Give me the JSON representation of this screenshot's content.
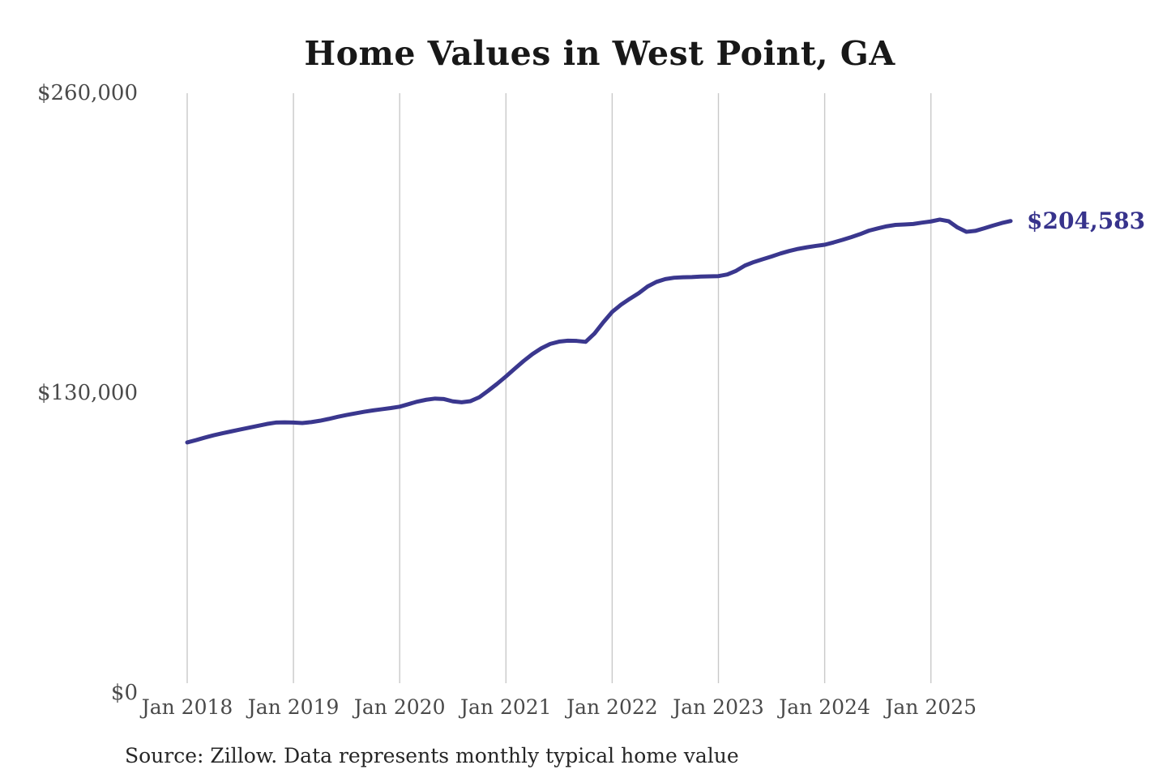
{
  "chart_data": {
    "type": "line",
    "title": "Home Values in West Point, GA",
    "source_note": "Source: Zillow. Data represents monthly typical home value",
    "xlabel": "",
    "ylabel": "",
    "x_tick_labels": [
      "Jan 2018",
      "Jan 2019",
      "Jan 2020",
      "Jan 2021",
      "Jan 2022",
      "Jan 2023",
      "Jan 2024",
      "Jan 2025"
    ],
    "y_tick_labels": [
      "$0",
      "$130,000",
      "$260,000"
    ],
    "y_axis": {
      "min": 0,
      "max": 260000,
      "ticks": [
        0,
        130000,
        260000
      ]
    },
    "grid": "vertical-only",
    "legend": "none",
    "colors": {
      "line": "#3a378e",
      "end_label": "#37338c",
      "gridline": "#c9c9c9",
      "axis_text": "#4a4a4a",
      "title_text": "#181818",
      "background": "#ffffff"
    },
    "series": [
      {
        "name": "Monthly typical home value",
        "start_month": "2018-01",
        "end_month": "2025-10",
        "frequency": "monthly",
        "end_label": "$204,583",
        "last_value": 204583,
        "values": [
          108600,
          109600,
          110700,
          111700,
          112600,
          113400,
          114200,
          115000,
          115800,
          116600,
          117200,
          117300,
          117200,
          117000,
          117400,
          118000,
          118800,
          119700,
          120500,
          121200,
          121900,
          122500,
          123000,
          123500,
          124100,
          125200,
          126300,
          127100,
          127600,
          127400,
          126400,
          126000,
          126500,
          128200,
          131000,
          134000,
          137200,
          140600,
          143900,
          146900,
          149400,
          151300,
          152300,
          152700,
          152600,
          152200,
          155800,
          160700,
          165200,
          168300,
          170900,
          173300,
          176200,
          178200,
          179400,
          180000,
          180200,
          180300,
          180500,
          180600,
          180700,
          181400,
          183000,
          185300,
          186800,
          188000,
          189200,
          190500,
          191600,
          192500,
          193200,
          193800,
          194300,
          195300,
          196400,
          197600,
          198900,
          200400,
          201400,
          202300,
          202900,
          203100,
          203300,
          203900,
          204400,
          205200,
          204500,
          201800,
          199900,
          200300,
          201400,
          202600,
          203700,
          204583
        ]
      }
    ]
  }
}
